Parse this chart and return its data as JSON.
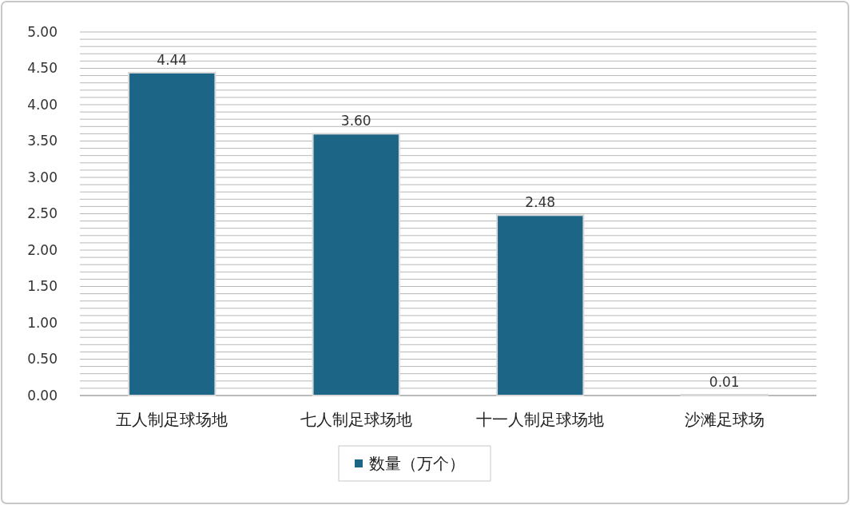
{
  "chart_data": {
    "type": "bar",
    "categories": [
      "五人制足球场地",
      "七人制足球场地",
      "十一人制足球场地",
      "沙滩足球场"
    ],
    "series": [
      {
        "name": "数量（万个）",
        "color": "#1d6586",
        "values": [
          4.44,
          3.6,
          2.48,
          0.01
        ],
        "value_labels": [
          "4.44",
          "3.60",
          "2.48",
          "0.01"
        ]
      }
    ],
    "ylim": [
      0,
      5
    ],
    "yticks": [
      {
        "value": 0,
        "label": "0.00"
      },
      {
        "value": 0.1,
        "label": null
      },
      {
        "value": 0.2,
        "label": null
      },
      {
        "value": 0.3,
        "label": null
      },
      {
        "value": 0.4,
        "label": null
      },
      {
        "value": 0.5,
        "label": "0.50"
      },
      {
        "value": 0.6,
        "label": null
      },
      {
        "value": 0.7,
        "label": null
      },
      {
        "value": 0.8,
        "label": null
      },
      {
        "value": 0.9,
        "label": null
      },
      {
        "value": 1,
        "label": "1.00"
      },
      {
        "value": 1.1,
        "label": null
      },
      {
        "value": 1.2,
        "label": null
      },
      {
        "value": 1.3,
        "label": null
      },
      {
        "value": 1.4,
        "label": null
      },
      {
        "value": 1.5,
        "label": "1.50"
      },
      {
        "value": 1.6,
        "label": null
      },
      {
        "value": 1.7,
        "label": null
      },
      {
        "value": 1.8,
        "label": null
      },
      {
        "value": 1.9,
        "label": null
      },
      {
        "value": 2,
        "label": "2.00"
      },
      {
        "value": 2.1,
        "label": null
      },
      {
        "value": 2.2,
        "label": null
      },
      {
        "value": 2.3,
        "label": null
      },
      {
        "value": 2.4,
        "label": null
      },
      {
        "value": 2.5,
        "label": "2.50"
      },
      {
        "value": 2.6,
        "label": null
      },
      {
        "value": 2.7,
        "label": null
      },
      {
        "value": 2.8,
        "label": null
      },
      {
        "value": 2.9,
        "label": null
      },
      {
        "value": 3,
        "label": "3.00"
      },
      {
        "value": 3.1,
        "label": null
      },
      {
        "value": 3.2,
        "label": null
      },
      {
        "value": 3.3,
        "label": null
      },
      {
        "value": 3.4,
        "label": null
      },
      {
        "value": 3.5,
        "label": "3.50"
      },
      {
        "value": 3.6,
        "label": null
      },
      {
        "value": 3.7,
        "label": null
      },
      {
        "value": 3.8,
        "label": null
      },
      {
        "value": 3.9,
        "label": null
      },
      {
        "value": 4,
        "label": "4.00"
      },
      {
        "value": 4.1,
        "label": null
      },
      {
        "value": 4.2,
        "label": null
      },
      {
        "value": 4.3,
        "label": null
      },
      {
        "value": 4.4,
        "label": null
      },
      {
        "value": 4.5,
        "label": "4.50"
      },
      {
        "value": 4.6,
        "label": null
      },
      {
        "value": 4.7,
        "label": null
      },
      {
        "value": 4.8,
        "label": null
      },
      {
        "value": 4.9,
        "label": null
      },
      {
        "value": 5,
        "label": "5.00"
      }
    ],
    "grid": "y",
    "legend": "bottom"
  }
}
